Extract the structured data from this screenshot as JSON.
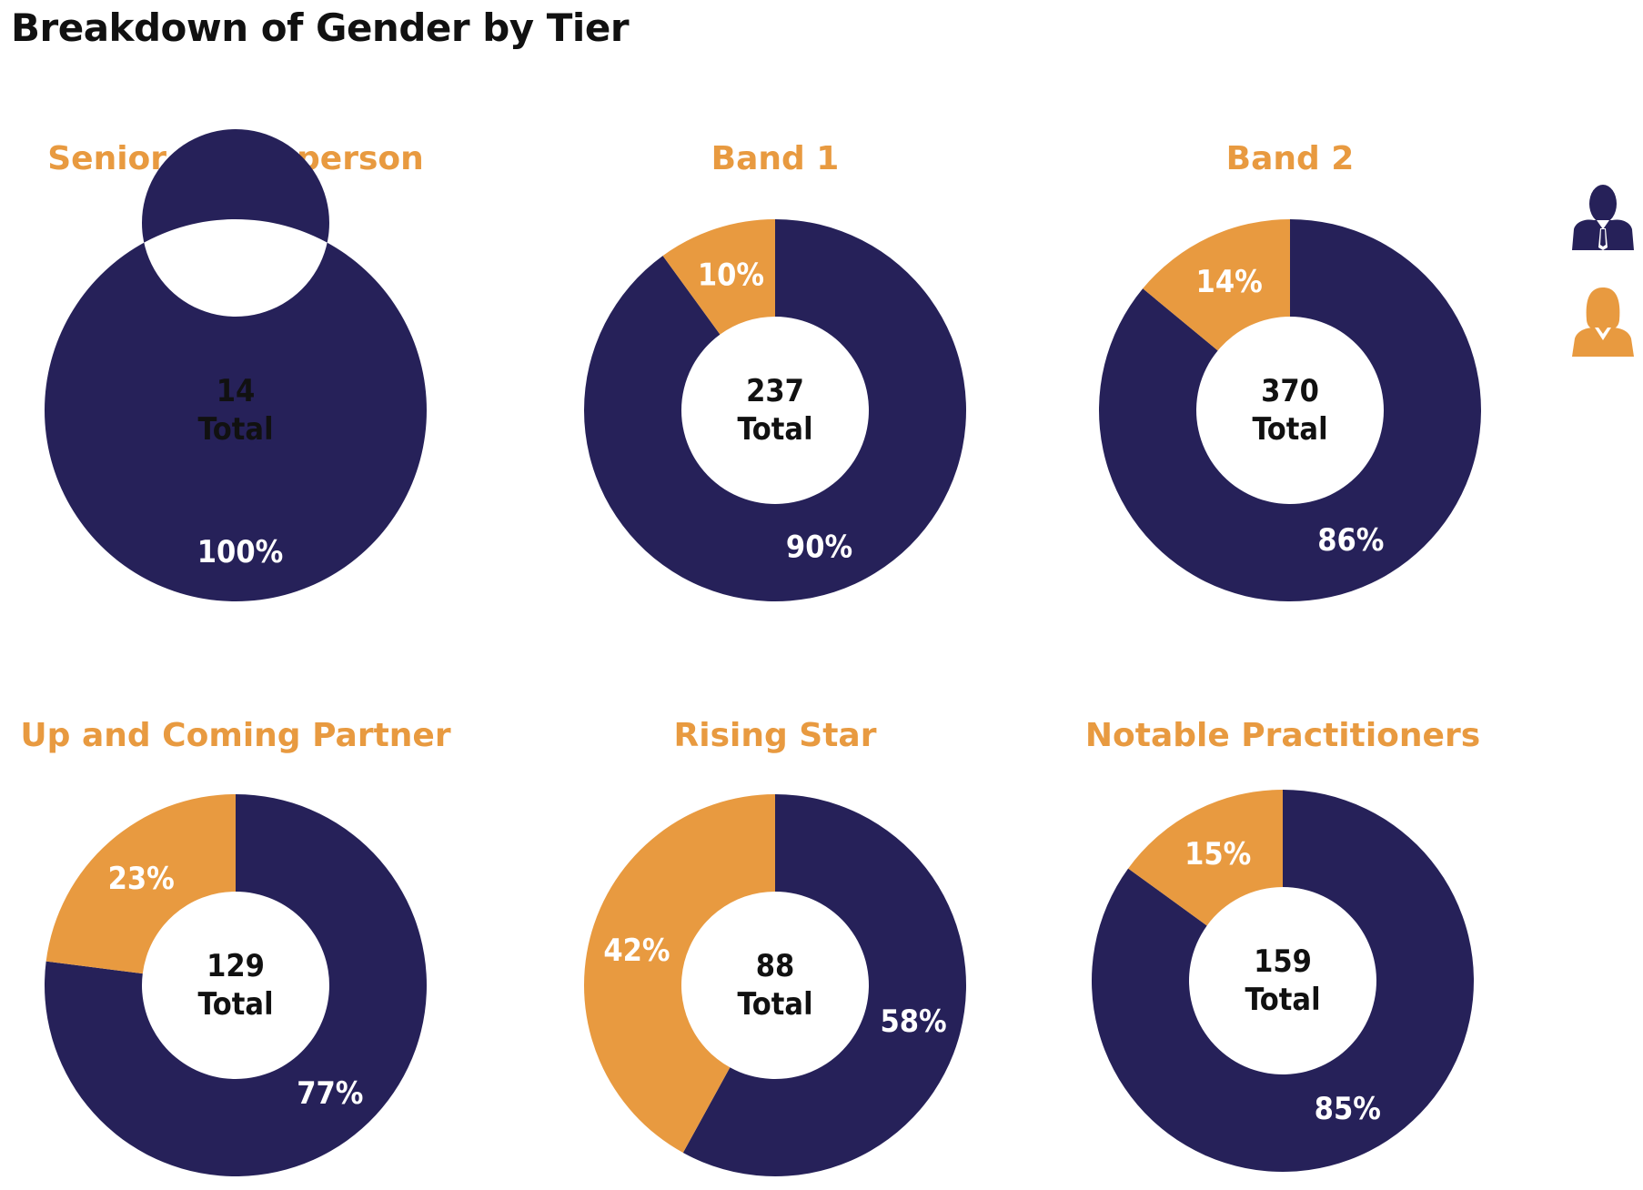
{
  "page": {
    "title": "Breakdown of Gender by Tier"
  },
  "colors": {
    "male": "#262159",
    "female": "#E89A40",
    "label_on_slice": "#ffffff",
    "center_text": "#111111",
    "title": "#E89A40"
  },
  "legend": [
    {
      "series": "male",
      "icon": "man-icon"
    },
    {
      "series": "female",
      "icon": "woman-icon"
    }
  ],
  "chart_data": [
    {
      "type": "pie",
      "donut": true,
      "title": "Senior Statesperson",
      "total": "14",
      "total_label": "Total",
      "series": [
        {
          "key": "male",
          "value": 100,
          "label": "100%"
        },
        {
          "key": "female",
          "value": 0,
          "label": ""
        }
      ]
    },
    {
      "type": "pie",
      "donut": true,
      "title": "Band 1",
      "total": "237",
      "total_label": "Total",
      "series": [
        {
          "key": "male",
          "value": 90,
          "label": "90%"
        },
        {
          "key": "female",
          "value": 10,
          "label": "10%"
        }
      ]
    },
    {
      "type": "pie",
      "donut": true,
      "title": "Band 2",
      "total": "370",
      "total_label": "Total",
      "series": [
        {
          "key": "male",
          "value": 86,
          "label": "86%"
        },
        {
          "key": "female",
          "value": 14,
          "label": "14%"
        }
      ]
    },
    {
      "type": "pie",
      "donut": true,
      "title": "Up and Coming Partner",
      "total": "129",
      "total_label": "Total",
      "series": [
        {
          "key": "male",
          "value": 77,
          "label": "77%"
        },
        {
          "key": "female",
          "value": 23,
          "label": "23%"
        }
      ]
    },
    {
      "type": "pie",
      "donut": true,
      "title": "Rising Star",
      "total": "88",
      "total_label": "Total",
      "series": [
        {
          "key": "male",
          "value": 58,
          "label": "58%"
        },
        {
          "key": "female",
          "value": 42,
          "label": "42%"
        }
      ]
    },
    {
      "type": "pie",
      "donut": true,
      "title": "Notable Practitioners",
      "total": "159",
      "total_label": "Total",
      "series": [
        {
          "key": "male",
          "value": 85,
          "label": "85%"
        },
        {
          "key": "female",
          "value": 15,
          "label": "15%"
        }
      ]
    }
  ]
}
